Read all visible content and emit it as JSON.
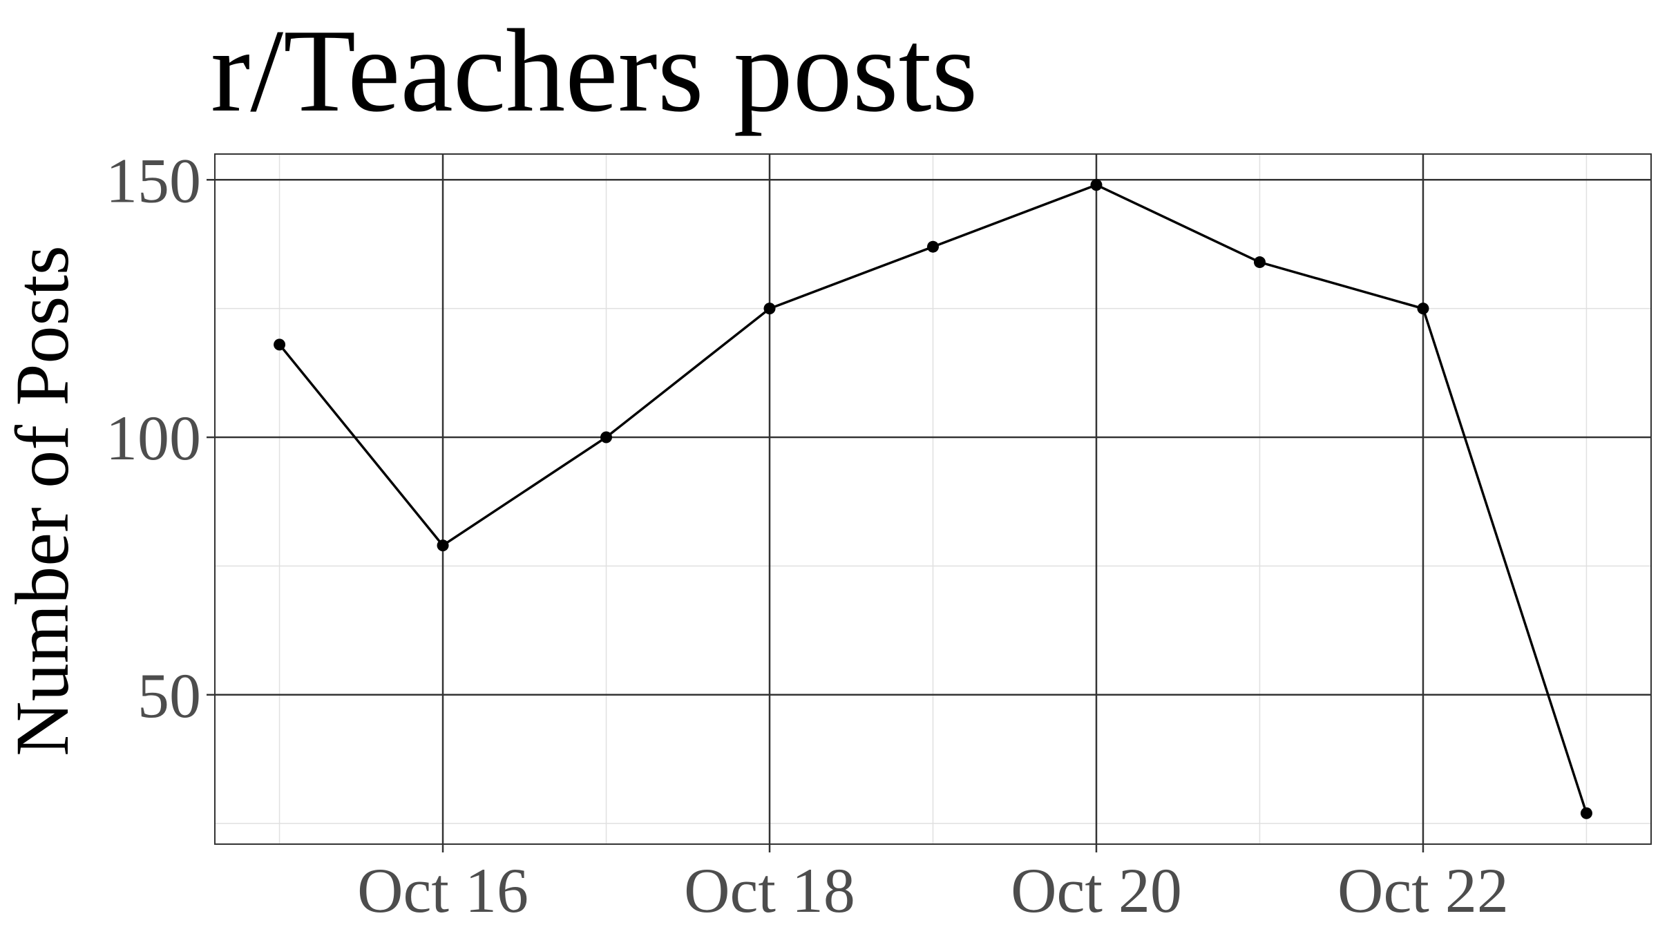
{
  "chart_data": {
    "type": "line",
    "title": "r/Teachers posts",
    "xlabel": "",
    "ylabel": "Number of Posts",
    "x": [
      "2023-10-15",
      "2023-10-16",
      "2023-10-17",
      "2023-10-18",
      "2023-10-19",
      "2023-10-20",
      "2023-10-21",
      "2023-10-22",
      "2023-10-23"
    ],
    "series": [
      {
        "name": "",
        "values": [
          118,
          79,
          100,
          125,
          137,
          149,
          134,
          125,
          27
        ]
      }
    ],
    "xlim": [
      "2023-10-14",
      "2023-10-23"
    ],
    "x_ticks": [
      {
        "value": "2023-10-16",
        "label": "Oct 16"
      },
      {
        "value": "2023-10-18",
        "label": "Oct 18"
      },
      {
        "value": "2023-10-20",
        "label": "Oct 20"
      },
      {
        "value": "2023-10-22",
        "label": "Oct 22"
      }
    ],
    "ylim": [
      21,
      155
    ],
    "y_ticks": [
      {
        "value": 50,
        "label": "50"
      },
      {
        "value": 100,
        "label": "100"
      },
      {
        "value": 150,
        "label": "150"
      }
    ],
    "grid": true,
    "legend": "none",
    "colors": {
      "line": "#000000",
      "major_grid": "#333333",
      "minor_grid": "#e0e0e0",
      "panel_border": "#333333",
      "tick_text": "#4d4d4d",
      "title_text": "#000000"
    }
  }
}
